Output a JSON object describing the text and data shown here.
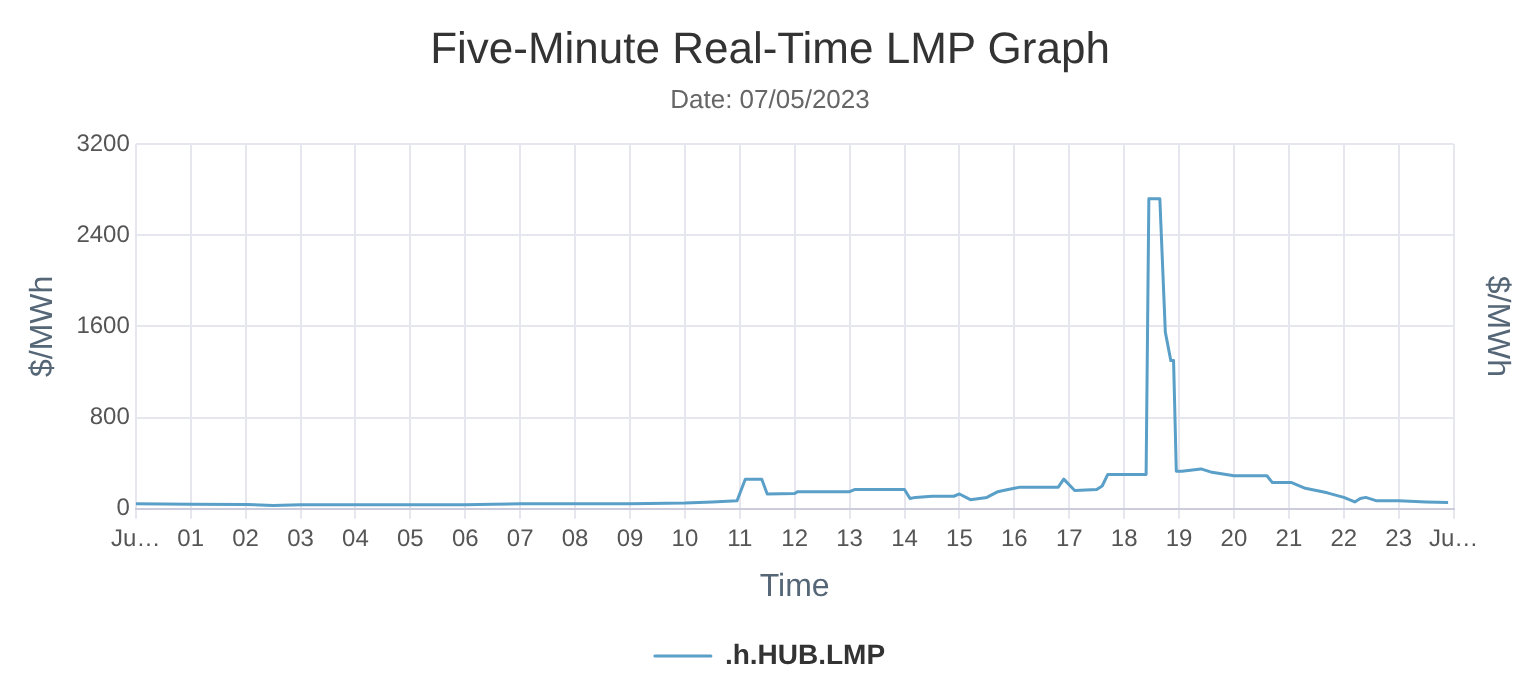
{
  "chart_data": {
    "type": "line",
    "title": "Five-Minute Real-Time LMP Graph",
    "subtitle": "Date: 07/05/2023",
    "xlabel": "Time",
    "ylabel": "$/MWh",
    "y2label": "$/MWh",
    "x": [
      0,
      1,
      2,
      2.5,
      3,
      4,
      5,
      6,
      6.5,
      7,
      8,
      9,
      10,
      10.5,
      10.95,
      11.1,
      11.4,
      11.5,
      12,
      12.05,
      13,
      13.1,
      14,
      14.1,
      14.2,
      14.5,
      14.9,
      15.0,
      15.2,
      15.5,
      15.7,
      15.8,
      16,
      16.1,
      16.8,
      16.9,
      17.1,
      17.5,
      17.6,
      17.7,
      18.4,
      18.45,
      18.5,
      18.65,
      18.75,
      18.85,
      18.9,
      18.95,
      19.05,
      19.4,
      19.6,
      20,
      20.6,
      20.7,
      21,
      21.05,
      21.3,
      21.7,
      22,
      22.2,
      22.3,
      22.4,
      22.6,
      23,
      23.5,
      23.9
    ],
    "series": [
      {
        "name": ".h.HUB.LMP",
        "color": "#5a9fc8",
        "values": [
          45,
          40,
          38,
          30,
          35,
          35,
          35,
          35,
          40,
          45,
          45,
          45,
          50,
          60,
          70,
          260,
          260,
          130,
          135,
          150,
          150,
          170,
          170,
          90,
          100,
          110,
          110,
          130,
          80,
          100,
          150,
          160,
          180,
          190,
          190,
          260,
          160,
          170,
          200,
          300,
          300,
          2720,
          2720,
          2720,
          1550,
          1300,
          1300,
          330,
          330,
          350,
          320,
          290,
          290,
          230,
          230,
          230,
          180,
          140,
          100,
          60,
          90,
          100,
          70,
          70,
          60,
          55
        ]
      }
    ],
    "xlim": [
      0,
      24
    ],
    "xticks": [
      {
        "value": 0,
        "label": "Ju…"
      },
      {
        "value": 1,
        "label": "01"
      },
      {
        "value": 2,
        "label": "02"
      },
      {
        "value": 3,
        "label": "03"
      },
      {
        "value": 4,
        "label": "04"
      },
      {
        "value": 5,
        "label": "05"
      },
      {
        "value": 6,
        "label": "06"
      },
      {
        "value": 7,
        "label": "07"
      },
      {
        "value": 8,
        "label": "08"
      },
      {
        "value": 9,
        "label": "09"
      },
      {
        "value": 10,
        "label": "10"
      },
      {
        "value": 11,
        "label": "11"
      },
      {
        "value": 12,
        "label": "12"
      },
      {
        "value": 13,
        "label": "13"
      },
      {
        "value": 14,
        "label": "14"
      },
      {
        "value": 15,
        "label": "15"
      },
      {
        "value": 16,
        "label": "16"
      },
      {
        "value": 17,
        "label": "17"
      },
      {
        "value": 18,
        "label": "18"
      },
      {
        "value": 19,
        "label": "19"
      },
      {
        "value": 20,
        "label": "20"
      },
      {
        "value": 21,
        "label": "21"
      },
      {
        "value": 22,
        "label": "22"
      },
      {
        "value": 23,
        "label": "23"
      },
      {
        "value": 24,
        "label": "Ju…"
      }
    ],
    "ylim": [
      0,
      3200
    ],
    "yticks": [
      0,
      800,
      1600,
      2400,
      3200
    ],
    "grid": true,
    "legend": "bottom",
    "marker": "none",
    "line_style": "solid"
  }
}
